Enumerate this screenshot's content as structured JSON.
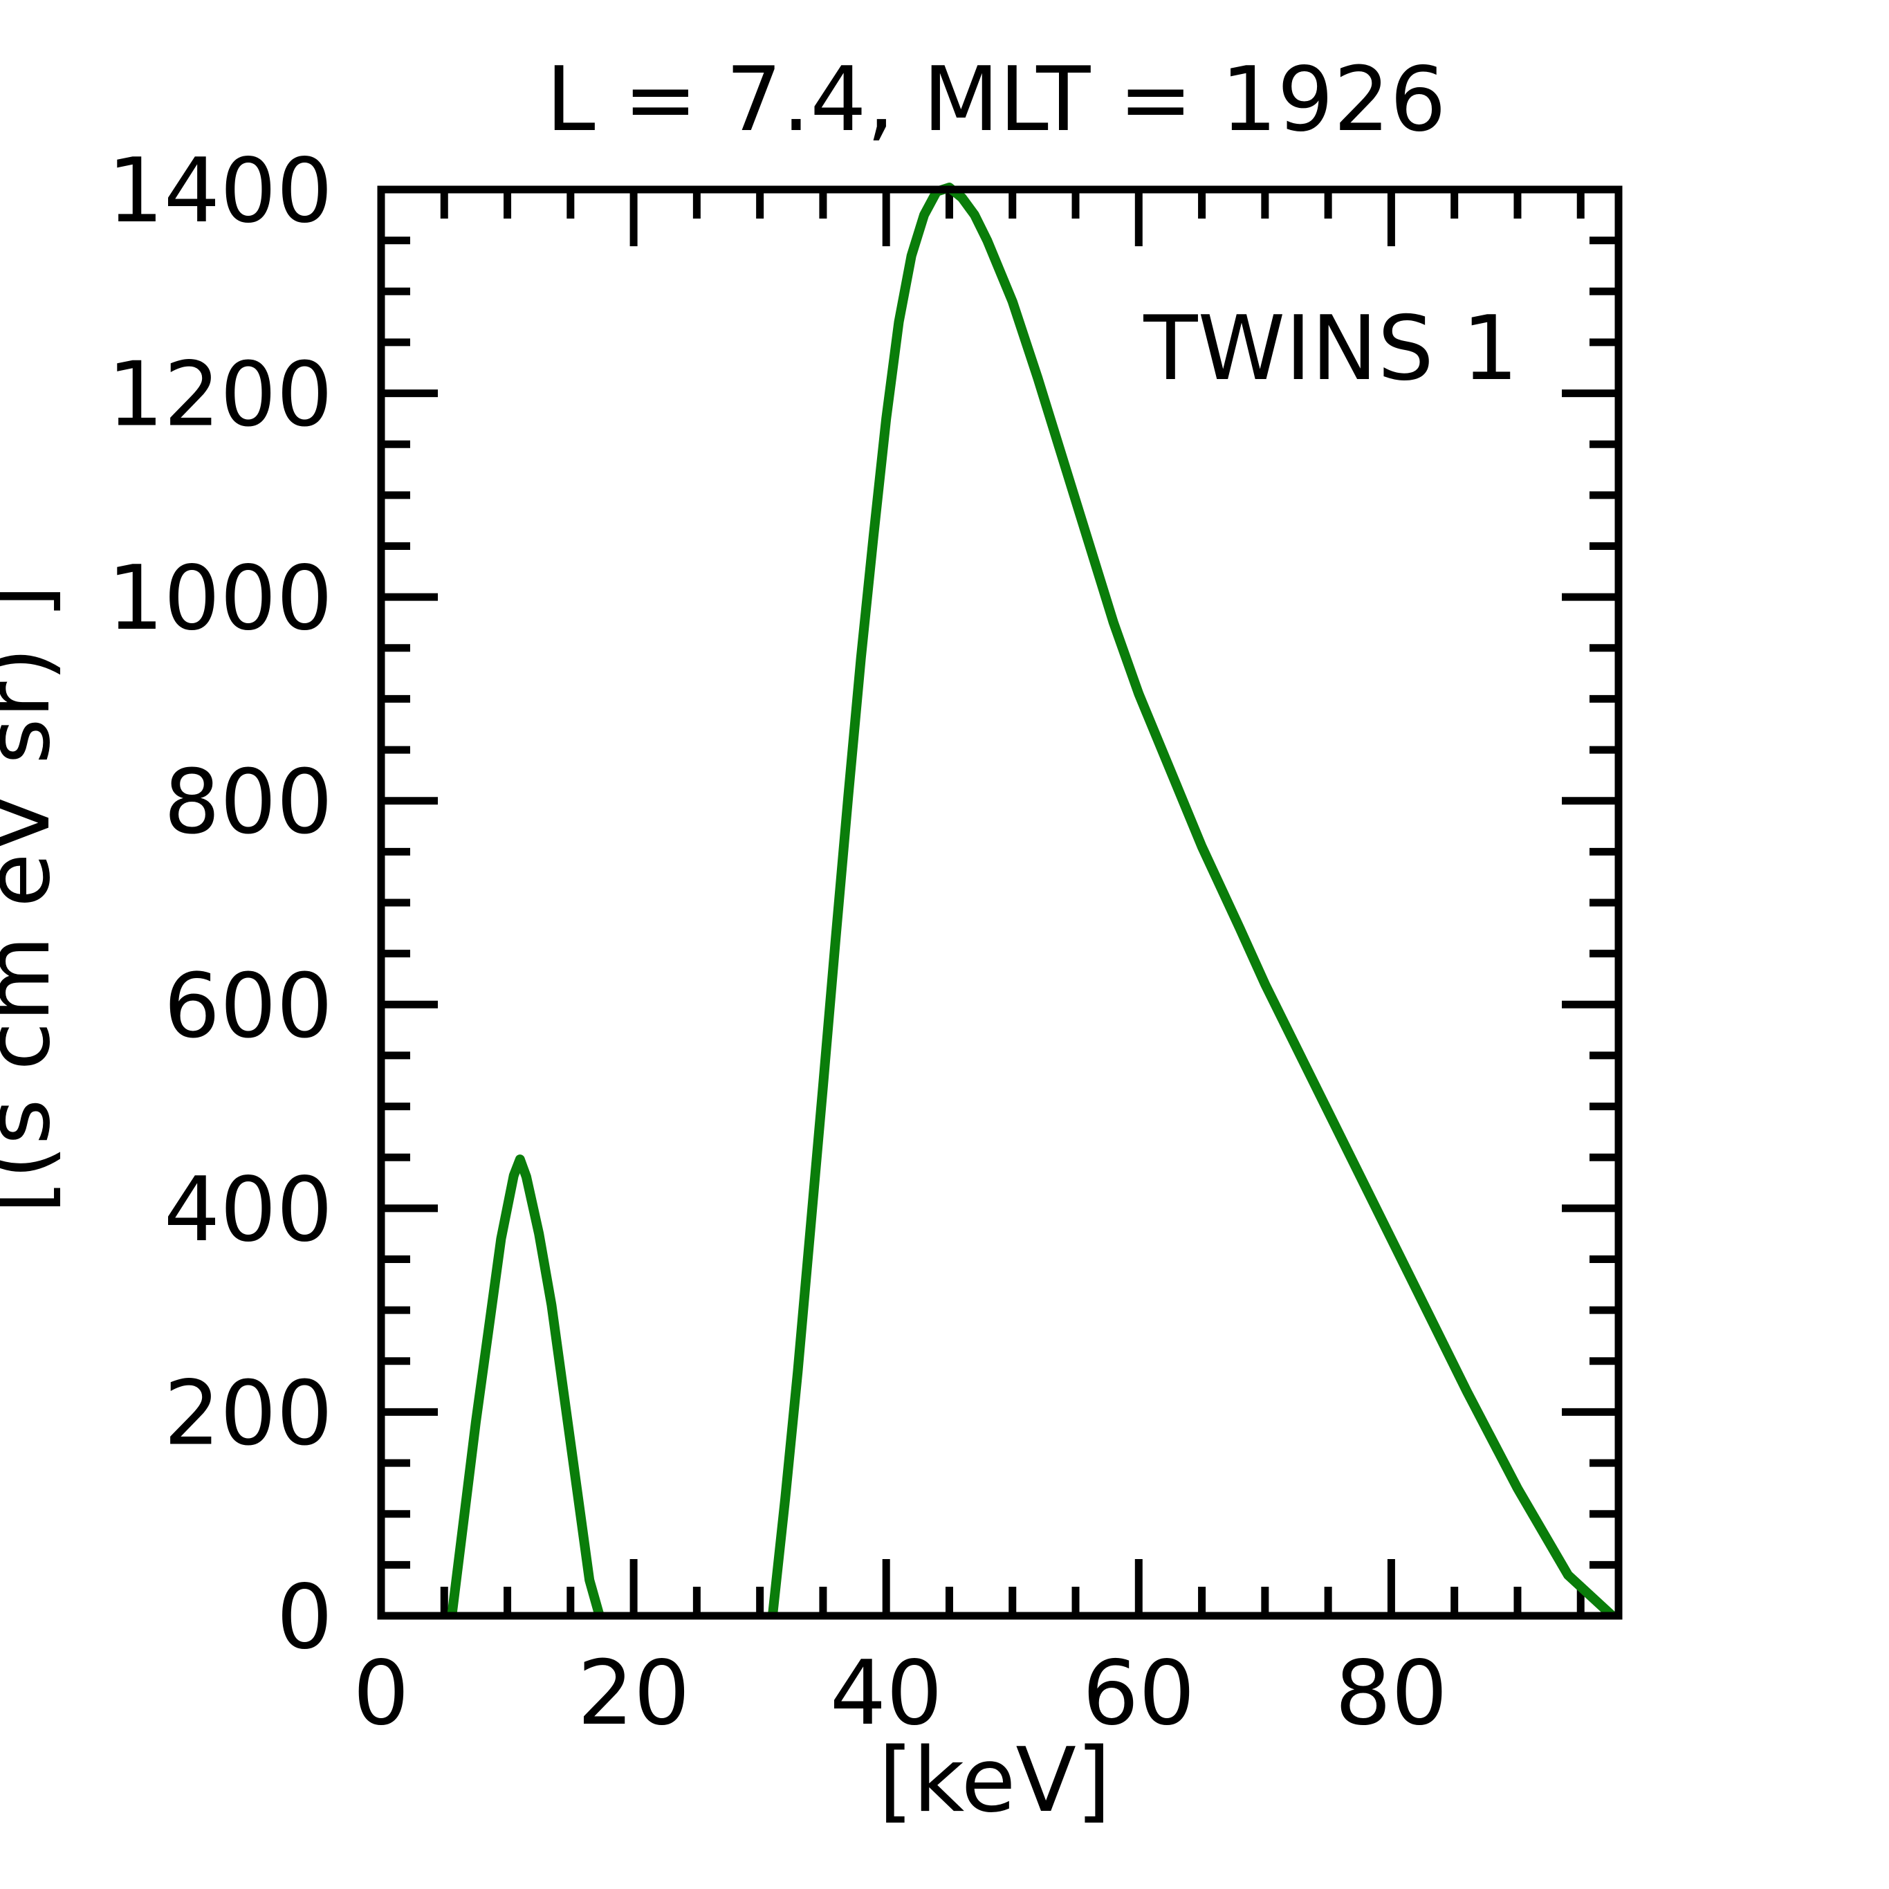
{
  "chart_data": {
    "type": "line",
    "title": "L =  7.4, MLT = 1926",
    "xlabel": "[keV]",
    "ylabel": "[(s cm  eV sr)  ]",
    "xlim": [
      0,
      98
    ],
    "ylim": [
      0,
      1400
    ],
    "x_ticks": [
      0,
      20,
      40,
      60,
      80
    ],
    "x_tick_labels": [
      "0",
      "20",
      "40",
      "60",
      "80"
    ],
    "x_minor_step": 5,
    "y_ticks": [
      0,
      200,
      400,
      600,
      800,
      1000,
      1200,
      1400
    ],
    "y_tick_labels": [
      "0",
      "200",
      "400",
      "600",
      "800",
      "1000",
      "1200",
      "1400"
    ],
    "y_minor_step": 50,
    "grid": false,
    "legend_position": "top-right",
    "series": [
      {
        "name": "TWINS 1",
        "color": "#0a7d0a",
        "segments": [
          {
            "x": [
              5.6,
              6.5,
              7.5,
              8.5,
              9.5,
              10.5,
              11.0,
              11.5,
              12.5,
              13.5,
              14.5,
              15.5,
              16.5,
              17.3
            ],
            "y": [
              0,
              90,
              190,
              280,
              370,
              432,
              448,
              431,
              375,
              305,
              215,
              125,
              35,
              0
            ]
          },
          {
            "x": [
              31.0,
              32.0,
              33.0,
              34.0,
              35.0,
              36.0,
              37.0,
              38.0,
              39.0,
              40.0,
              41.0,
              42.0,
              43.0,
              44.0,
              45.0,
              46.0,
              47.0,
              48.0,
              50.0,
              52.0,
              55.0,
              58.0,
              60.0,
              63.0,
              65.0,
              68.0,
              70.0,
              73.0,
              75.0,
              78.0,
              80.0,
              83.0,
              86.0,
              90.0,
              94.0,
              97.5
            ],
            "y": [
              0,
              115,
              240,
              380,
              520,
              665,
              805,
              940,
              1060,
              1175,
              1270,
              1335,
              1375,
              1398,
              1402,
              1392,
              1375,
              1350,
              1290,
              1215,
              1095,
              975,
              905,
              815,
              755,
              675,
              620,
              545,
              495,
              420,
              370,
              295,
              220,
              125,
              40,
              0
            ]
          }
        ]
      }
    ]
  }
}
